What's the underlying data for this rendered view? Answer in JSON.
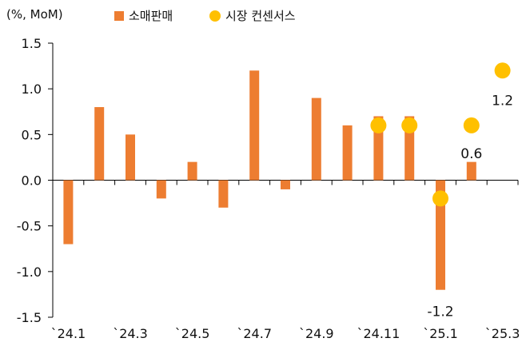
{
  "chart_data": {
    "type": "bar",
    "unit_label": "(%, MoM)",
    "categories": [
      "`24.1",
      "`24.2",
      "`24.3",
      "`24.4",
      "`24.5",
      "`24.6",
      "`24.7",
      "`24.8",
      "`24.9",
      "`24.10",
      "`24.11",
      "`24.12",
      "`25.1",
      "`25.2",
      "`25.3"
    ],
    "x_tick_labels": [
      "`24.1",
      "",
      "`24.3",
      "",
      "`24.5",
      "",
      "`24.7",
      "",
      "`24.9",
      "",
      "`24.11",
      "",
      "`25.1",
      "",
      "`25.3"
    ],
    "series": [
      {
        "name": "소매판매",
        "type": "bar",
        "color": "#ED7D31",
        "values": [
          -0.7,
          0.8,
          0.5,
          -0.2,
          0.2,
          -0.3,
          1.2,
          -0.1,
          0.9,
          0.6,
          0.7,
          0.7,
          -1.2,
          0.2,
          null
        ]
      },
      {
        "name": "시장 컨센서스",
        "type": "scatter",
        "color": "#FFC000",
        "values": [
          null,
          null,
          null,
          null,
          null,
          null,
          null,
          null,
          null,
          null,
          0.6,
          0.6,
          -0.2,
          0.6,
          1.2
        ]
      }
    ],
    "data_labels": [
      {
        "category_index": 12,
        "text": "-1.2"
      },
      {
        "category_index": 13,
        "text": "0.6"
      },
      {
        "category_index": 14,
        "text": "1.2"
      }
    ],
    "y_ticks": [
      "1.5",
      "1.0",
      "0.5",
      "0.0",
      "-0.5",
      "-1.0",
      "-1.5"
    ],
    "ylim": [
      -1.5,
      1.5
    ],
    "xlabel": "",
    "ylabel": ""
  }
}
